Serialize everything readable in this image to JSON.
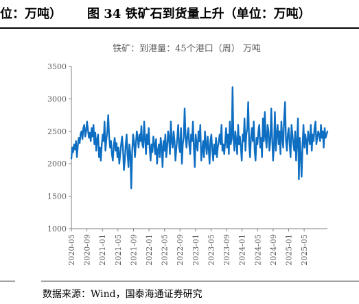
{
  "header": {
    "left_fragment": "位：万吨）",
    "figure_title": "图 34  铁矿石到货量上升（单位：万吨）"
  },
  "footer": {
    "source": "数据来源：Wind，国泰海通证券研究"
  },
  "colors": {
    "line": "#0E6EC2",
    "axis": "#7f7f7f",
    "text": "#595959"
  },
  "chart_data": {
    "type": "line",
    "title": "铁矿：到港量：45个港口（周） 万吨",
    "xlabel": "",
    "ylabel": "",
    "ylim": [
      1000,
      3500
    ],
    "yticks": [
      1000,
      1500,
      2000,
      2500,
      3000,
      3500
    ],
    "xlim": [
      "2020-05",
      "2025-11"
    ],
    "xticks": [
      "2020-05",
      "2020-09",
      "2021-01",
      "2021-05",
      "2021-09",
      "2022-01",
      "2022-05",
      "2022-09",
      "2023-01",
      "2023-05",
      "2023-09",
      "2024-01",
      "2024-05",
      "2024-09",
      "2025-01",
      "2025-05"
    ],
    "grid": false,
    "legend": "none",
    "series": [
      {
        "name": "",
        "start": "2020-05",
        "frequency": "weekly",
        "values": [
          2080,
          2250,
          2180,
          2300,
          2220,
          2350,
          2100,
          2280,
          2400,
          2320,
          2460,
          2500,
          2380,
          2550,
          2600,
          2420,
          2500,
          2650,
          2520,
          2400,
          2480,
          2350,
          2550,
          2420,
          2600,
          2300,
          2480,
          2200,
          2380,
          2450,
          2100,
          2250,
          2050,
          2300,
          2450,
          2350,
          2650,
          2200,
          2380,
          2500,
          2750,
          2420,
          2250,
          2350,
          2150,
          2050,
          2280,
          2400,
          2200,
          2320,
          2100,
          2250,
          2000,
          2150,
          2300,
          2420,
          2250,
          1900,
          2050,
          2300,
          2450,
          2150,
          1950,
          2300,
          2150,
          1620,
          2200,
          2450,
          2350,
          2100,
          2300,
          2500,
          2400,
          2250,
          2450,
          2350,
          2580,
          2300,
          2250,
          2650,
          2400,
          2150,
          2450,
          2300,
          2550,
          2250,
          2050,
          2300,
          2180,
          2420,
          2300,
          2150,
          2380,
          2000,
          2200,
          2300,
          2100,
          2400,
          2250,
          1950,
          2350,
          2200,
          2450,
          2100,
          2250,
          2500,
          2400,
          2150,
          2650,
          2350,
          2250,
          2500,
          2350,
          2050,
          2250,
          2400,
          2600,
          2250,
          2180,
          2550,
          2000,
          2300,
          2420,
          2850,
          2400,
          2250,
          2450,
          2550,
          2300,
          2150,
          2450,
          2350,
          2650,
          2250,
          1950,
          2450,
          2300,
          2200,
          2500,
          2350,
          2600,
          2050,
          2200,
          2350,
          2100,
          2500,
          2300,
          2150,
          2420,
          2250,
          2000,
          2350,
          2450,
          2200,
          2050,
          2300,
          2150,
          2400,
          2100,
          2250,
          2350,
          2450,
          2300,
          2600,
          2200,
          2300,
          2150,
          2350,
          2550,
          2250,
          2450,
          2150,
          2650,
          2300,
          2380,
          3180,
          2400,
          2200,
          2500,
          2350,
          2150,
          2600,
          2300,
          2420,
          2250,
          2050,
          2450,
          2350,
          2700,
          2200,
          2450,
          2550,
          2950,
          2300,
          2100,
          2400,
          2550,
          2350,
          2650,
          2200,
          2050,
          2400,
          2300,
          2500,
          2600,
          2250,
          2400,
          2100,
          2700,
          2350,
          2800,
          2400,
          2250,
          2600,
          2500,
          2200,
          2350,
          2850,
          2400,
          2050,
          2300,
          2800,
          2200,
          2450,
          2600,
          2300,
          2500,
          2150,
          2650,
          2400,
          2250,
          2700,
          2950,
          2350,
          2200,
          2450,
          2550,
          2300,
          2100,
          2600,
          2450,
          2300,
          2200,
          2500,
          2050,
          2350,
          2700,
          1760,
          2400,
          2150,
          1800,
          2300,
          2600,
          2250,
          2450,
          2350,
          2150,
          2500,
          2400,
          2300,
          2600,
          2200,
          2450,
          2350,
          2550,
          2650,
          2300,
          2400,
          2500,
          2450,
          2350,
          2600,
          2400,
          2500,
          2250,
          2550,
          2400,
          2450,
          2500
        ]
      }
    ]
  }
}
